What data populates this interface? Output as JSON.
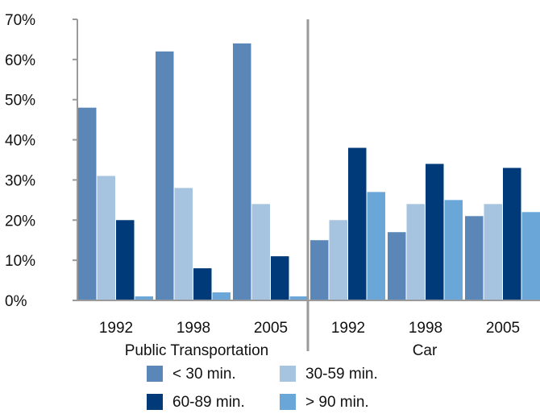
{
  "chart_data": {
    "type": "bar",
    "groups": [
      {
        "label": "Public Transportation",
        "categories": [
          "1992",
          "1998",
          "2005"
        ]
      },
      {
        "label": "Car",
        "categories": [
          "1992",
          "1998",
          "2005"
        ]
      }
    ],
    "series": [
      {
        "name": "< 30 min.",
        "color": "#5b87b8",
        "values": [
          48,
          62,
          64,
          15,
          17,
          21
        ]
      },
      {
        "name": "30-59 min.",
        "color": "#a6c4e0",
        "values": [
          31,
          28,
          24,
          20,
          24,
          24
        ]
      },
      {
        "name": "60-89 min.",
        "color": "#003a78",
        "values": [
          20,
          8,
          11,
          38,
          34,
          33
        ]
      },
      {
        "name": "> 90 min.",
        "color": "#6aa6d8",
        "values": [
          1,
          2,
          1,
          27,
          25,
          22
        ]
      }
    ],
    "y_ticks": [
      "0%",
      "10%",
      "20%",
      "30%",
      "40%",
      "50%",
      "60%",
      "70%"
    ],
    "ylim": [
      0,
      70
    ],
    "grid": false,
    "legend_position": "bottom"
  }
}
